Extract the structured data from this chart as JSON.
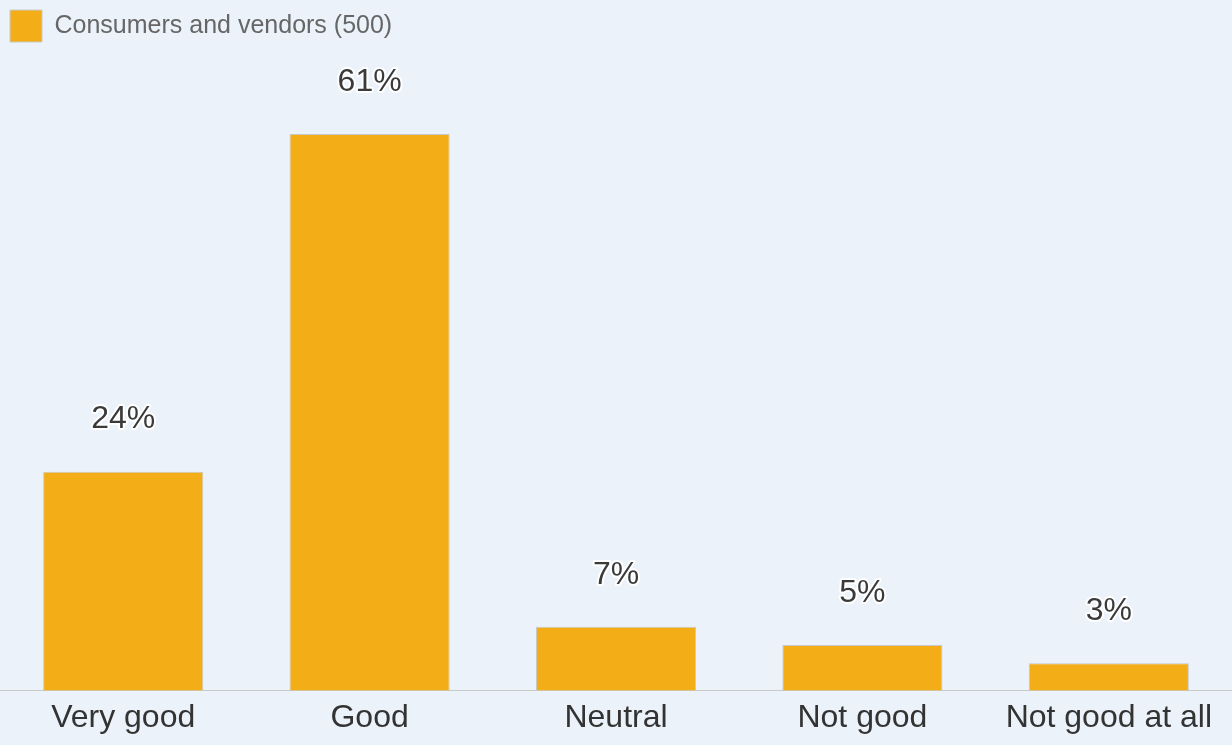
{
  "chart_data": {
    "type": "bar",
    "categories": [
      "Very good",
      "Good",
      "Neutral",
      "Not good",
      "Not good at all"
    ],
    "series": [
      {
        "name": "Consumers and vendors (500)",
        "color": "#f3ae17",
        "values": [
          24,
          61,
          7,
          5,
          3
        ],
        "value_labels": [
          "24%",
          "61%",
          "7%",
          "5%",
          "3%"
        ]
      }
    ],
    "legend": "top left",
    "grid": false
  }
}
